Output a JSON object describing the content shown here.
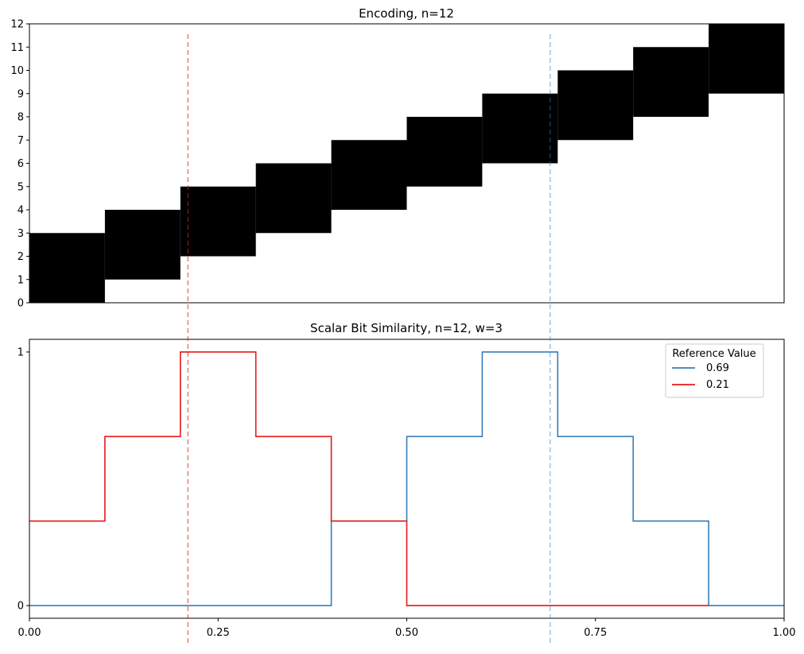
{
  "chart_data": [
    {
      "type": "heatmap",
      "title": "Encoding, n=12",
      "xlim": [
        0,
        1
      ],
      "ylim": [
        0,
        12
      ],
      "yticks": [
        "0",
        "1",
        "2",
        "3",
        "4",
        "5",
        "6",
        "7",
        "8",
        "9",
        "10",
        "11",
        "12"
      ],
      "bins": 10,
      "width": 3,
      "cells": [
        {
          "x0": 0.0,
          "x1": 0.1,
          "y0": 0,
          "y1": 3
        },
        {
          "x0": 0.1,
          "x1": 0.2,
          "y0": 1,
          "y1": 4
        },
        {
          "x0": 0.2,
          "x1": 0.3,
          "y0": 2,
          "y1": 5
        },
        {
          "x0": 0.3,
          "x1": 0.4,
          "y0": 3,
          "y1": 6
        },
        {
          "x0": 0.4,
          "x1": 0.5,
          "y0": 4,
          "y1": 7
        },
        {
          "x0": 0.5,
          "x1": 0.6,
          "y0": 5,
          "y1": 8
        },
        {
          "x0": 0.6,
          "x1": 0.7,
          "y0": 6,
          "y1": 9
        },
        {
          "x0": 0.7,
          "x1": 0.8,
          "y0": 7,
          "y1": 10
        },
        {
          "x0": 0.8,
          "x1": 0.9,
          "y0": 8,
          "y1": 11
        },
        {
          "x0": 0.9,
          "x1": 1.0,
          "y0": 9,
          "y1": 12
        }
      ],
      "cell_color": "#000000"
    },
    {
      "type": "line",
      "title": "Scalar Bit Similarity, n=12, w=3",
      "xlim": [
        0,
        1
      ],
      "ylim": [
        -0.05,
        1.05
      ],
      "xticks": [
        0,
        0.25,
        0.5,
        0.75,
        1.0
      ],
      "xtick_labels": [
        "0.00",
        "0.25",
        "0.50",
        "0.75",
        "1.00"
      ],
      "yticks": [
        0,
        1
      ],
      "ytick_labels": [
        "0",
        "1"
      ],
      "legend_title": "Reference Value",
      "legend_position": "top-right",
      "series": [
        {
          "name": "0.69",
          "color": "#377eb8",
          "x": [
            0.0,
            0.4,
            0.4,
            0.5,
            0.5,
            0.6,
            0.6,
            0.7,
            0.7,
            0.8,
            0.8,
            0.9,
            0.9,
            1.0
          ],
          "y": [
            0,
            0,
            0.3333,
            0.3333,
            0.6667,
            0.6667,
            1,
            1,
            0.6667,
            0.6667,
            0.3333,
            0.3333,
            0,
            0
          ]
        },
        {
          "name": "0.21",
          "color": "#e41a1c",
          "x": [
            0.0,
            0.1,
            0.1,
            0.2,
            0.2,
            0.3,
            0.3,
            0.4,
            0.4,
            0.5,
            0.5,
            0.9
          ],
          "y": [
            0.3333,
            0.3333,
            0.6667,
            0.6667,
            1,
            1,
            0.6667,
            0.6667,
            0.3333,
            0.3333,
            0,
            0
          ]
        }
      ]
    }
  ],
  "reference_lines": [
    {
      "x": 0.21,
      "color": "#e41a1c",
      "opacity": 0.55
    },
    {
      "x": 0.69,
      "color": "#377eb8",
      "opacity": 0.45
    }
  ]
}
